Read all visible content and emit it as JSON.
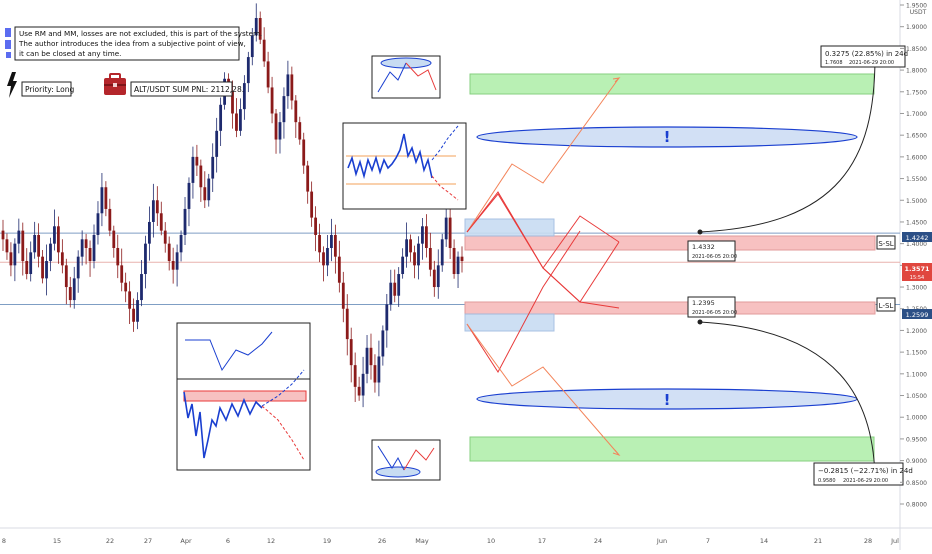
{
  "header": {
    "note_lines": [
      "Use RM and MM, losses are not excluded, this is part of the system.",
      "The author introduces the idea from a subjective point of view,",
      "it can be closed at any time."
    ],
    "priority_label": "Priority: Long",
    "pnl_label": "ALT/USDT SUM PNL: 2112,28."
  },
  "colors": {
    "candle_up": "#1e2a6e",
    "candle_down": "#8b1a1a",
    "zone_green": "#b9f0b4",
    "zone_red": "#f7c1c1",
    "zone_blue": "#c8dcf2",
    "ellipse_fill": "#d2e0f5",
    "ellipse_stroke": "#1a3fd0",
    "path_red": "#e83a3a",
    "path_orange": "#f3845a",
    "price_badge": "#e0473f"
  },
  "chart_data": {
    "type": "candlestick",
    "title": "",
    "quote_currency": "USDT",
    "ylim": [
      0.78,
      1.98
    ],
    "y_ticks": [
      "1.9500",
      "1.9000",
      "1.8500",
      "1.8000",
      "1.7500",
      "1.7000",
      "1.6500",
      "1.6000",
      "1.5500",
      "1.5000",
      "1.4500",
      "1.4000",
      "1.3500",
      "1.3000",
      "1.2500",
      "1.2000",
      "1.1500",
      "1.1000",
      "1.0500",
      "1.0000",
      "0.9500",
      "0.9000",
      "0.8500",
      "0.8000"
    ],
    "x_ticks": [
      "8",
      "15",
      "22",
      "27",
      "Apr",
      "6",
      "12",
      "19",
      "26",
      "May",
      "10",
      "17",
      "24",
      "Jun",
      "7",
      "14",
      "21",
      "28",
      "Jul"
    ],
    "last_price": {
      "value": "1.3571",
      "countdown": "15:54"
    },
    "levels": [
      {
        "value": "1.4242",
        "label": "S-SL"
      },
      {
        "value": "1.2599",
        "label": "L-SL"
      }
    ],
    "zones": [
      {
        "name": "long-target-zone",
        "type": "green",
        "from": 1.73,
        "to": 1.77
      },
      {
        "name": "short-entry-zone",
        "type": "red",
        "from": 1.395,
        "to": 1.42
      },
      {
        "name": "long-entry-zone",
        "type": "red",
        "from": 1.26,
        "to": 1.285
      },
      {
        "name": "short-target-zone",
        "type": "green",
        "from": 0.945,
        "to": 0.99
      }
    ],
    "forecast_boxes": [
      {
        "label": "1.4332",
        "date": "2021-06-05 20:00"
      },
      {
        "label": "1.2395",
        "date": "2021-06-05 20:00"
      }
    ],
    "projections": [
      {
        "line1": "0.3275 (22.85%) in 24d",
        "date_price": "1.7608",
        "date": "2021-06-29  20:00"
      },
      {
        "line1": "−0.2815 (−22.71%) in 24d",
        "date_price": "0.9580",
        "date": "2021-06-29  20:00"
      }
    ],
    "ellipse_marks": [
      "!",
      "!"
    ],
    "series": [
      {
        "values": [
          1.41,
          1.38,
          1.35,
          1.4,
          1.43,
          1.36,
          1.33,
          1.38,
          1.42,
          1.37,
          1.32,
          1.36,
          1.4,
          1.44,
          1.38,
          1.35,
          1.3,
          1.27,
          1.32,
          1.37,
          1.41,
          1.39,
          1.36,
          1.42,
          1.47,
          1.53,
          1.48,
          1.43,
          1.39,
          1.35,
          1.31,
          1.29,
          1.25,
          1.22,
          1.27,
          1.33,
          1.4,
          1.45,
          1.5,
          1.47,
          1.43,
          1.4,
          1.36,
          1.34,
          1.38,
          1.42,
          1.48,
          1.54,
          1.6,
          1.58,
          1.53,
          1.5,
          1.55,
          1.6,
          1.66,
          1.72,
          1.78,
          1.75,
          1.7,
          1.66,
          1.71,
          1.77,
          1.83,
          1.88,
          1.92,
          1.87,
          1.82,
          1.76,
          1.7,
          1.64,
          1.68,
          1.74,
          1.79,
          1.73,
          1.68,
          1.64,
          1.58,
          1.52,
          1.46,
          1.42,
          1.38,
          1.35,
          1.39,
          1.42,
          1.37,
          1.31,
          1.25,
          1.18,
          1.12,
          1.07,
          1.05,
          1.1,
          1.16,
          1.12,
          1.08,
          1.14,
          1.2,
          1.26,
          1.31,
          1.28,
          1.33,
          1.37,
          1.41,
          1.38,
          1.35,
          1.4,
          1.44,
          1.39,
          1.34,
          1.3,
          1.35,
          1.41,
          1.46,
          1.39,
          1.33,
          1.37,
          1.36
        ]
      }
    ]
  }
}
